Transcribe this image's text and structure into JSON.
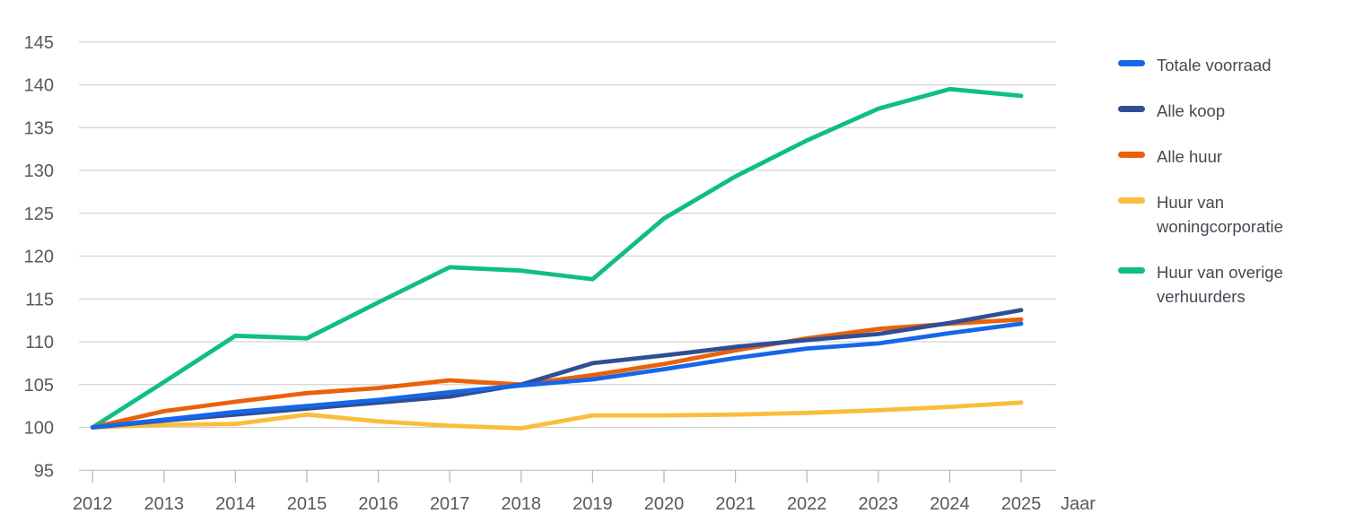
{
  "chart_data": {
    "type": "line",
    "title": "",
    "xlabel": "Jaar",
    "ylabel": "",
    "x": [
      2012,
      2013,
      2014,
      2015,
      2016,
      2017,
      2018,
      2019,
      2020,
      2021,
      2022,
      2023,
      2024,
      2025
    ],
    "ylim": [
      95,
      145
    ],
    "y_tick_step": 5,
    "y_ticks": [
      95,
      100,
      105,
      110,
      115,
      120,
      125,
      130,
      135,
      140,
      145
    ],
    "grid": true,
    "legend_position": "right",
    "series": [
      {
        "name": "Totale voorraad",
        "color": "#1667e8",
        "values": [
          100,
          100.9,
          101.8,
          102.5,
          103.2,
          104.1,
          104.9,
          105.6,
          106.8,
          108.1,
          109.2,
          109.8,
          111.0,
          112.1
        ]
      },
      {
        "name": "Alle koop",
        "color": "#2f4e96",
        "values": [
          100,
          100.8,
          101.5,
          102.2,
          102.9,
          103.6,
          105.0,
          107.5,
          108.4,
          109.4,
          110.2,
          110.9,
          112.2,
          113.7
        ]
      },
      {
        "name": "Alle huur",
        "color": "#ea6109",
        "values": [
          100,
          101.9,
          103.0,
          104.0,
          104.6,
          105.5,
          105.0,
          106.1,
          107.4,
          109.0,
          110.4,
          111.5,
          112.1,
          112.6
        ]
      },
      {
        "name": "Huur van woningcorporatie",
        "color": "#fabd3c",
        "values": [
          100,
          100.3,
          100.4,
          101.5,
          100.7,
          100.2,
          99.9,
          101.4,
          101.4,
          101.5,
          101.7,
          102.0,
          102.4,
          102.9
        ]
      },
      {
        "name": "Huur van overige verhuurders",
        "color": "#0fbe85",
        "values": [
          100,
          105.3,
          110.7,
          110.4,
          114.6,
          118.7,
          118.3,
          117.3,
          124.4,
          129.3,
          133.5,
          137.2,
          139.5,
          138.7
        ]
      }
    ]
  },
  "colors": {
    "axis_text": "#58595b",
    "legend_text": "#424a54",
    "gridline": "#d3d3d3",
    "axis_line": "#c4c4c4",
    "tick": "#b4b4b4"
  },
  "legend": {
    "items": [
      {
        "label": "Totale voorraad"
      },
      {
        "label": "Alle koop"
      },
      {
        "label": "Alle huur"
      },
      {
        "label": "Huur van woningcorporatie"
      },
      {
        "label": "Huur van overige verhuurders"
      }
    ]
  }
}
